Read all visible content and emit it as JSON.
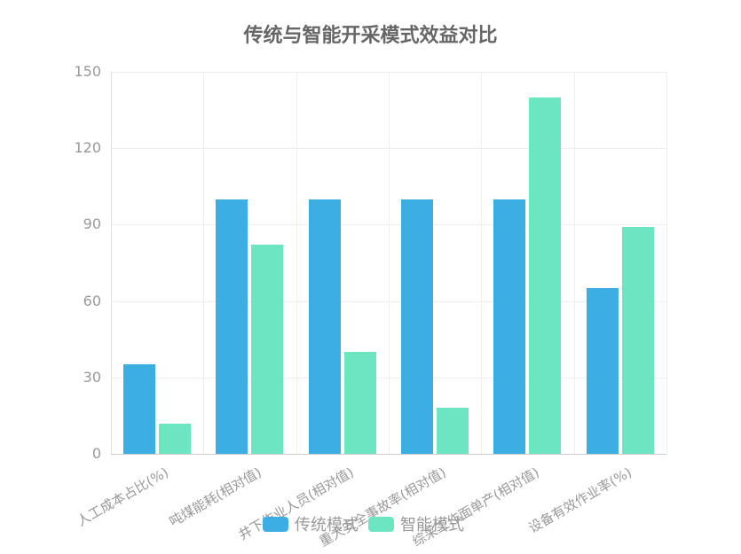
{
  "chart_data": {
    "type": "bar",
    "title": "传统与智能开采模式效益对比",
    "categories": [
      "人工成本占比(%)",
      "吨煤能耗(相对值)",
      "井下作业人员(相对值)",
      "重大安全事故率(相对值)",
      "综采工作面单产(相对值)",
      "设备有效作业率(%)"
    ],
    "series": [
      {
        "name": "传统模式",
        "color": "#3daee3",
        "values": [
          35,
          100,
          100,
          100,
          100,
          65
        ]
      },
      {
        "name": "智能模式",
        "color": "#6ce5c1",
        "values": [
          12,
          82,
          40,
          18,
          140,
          89
        ]
      }
    ],
    "xlabel": "",
    "ylabel": "",
    "ylim": [
      0,
      150
    ],
    "yticks": [
      "0",
      "30",
      "60",
      "90",
      "120",
      "150"
    ],
    "grid": true,
    "legend_position": "bottom"
  }
}
